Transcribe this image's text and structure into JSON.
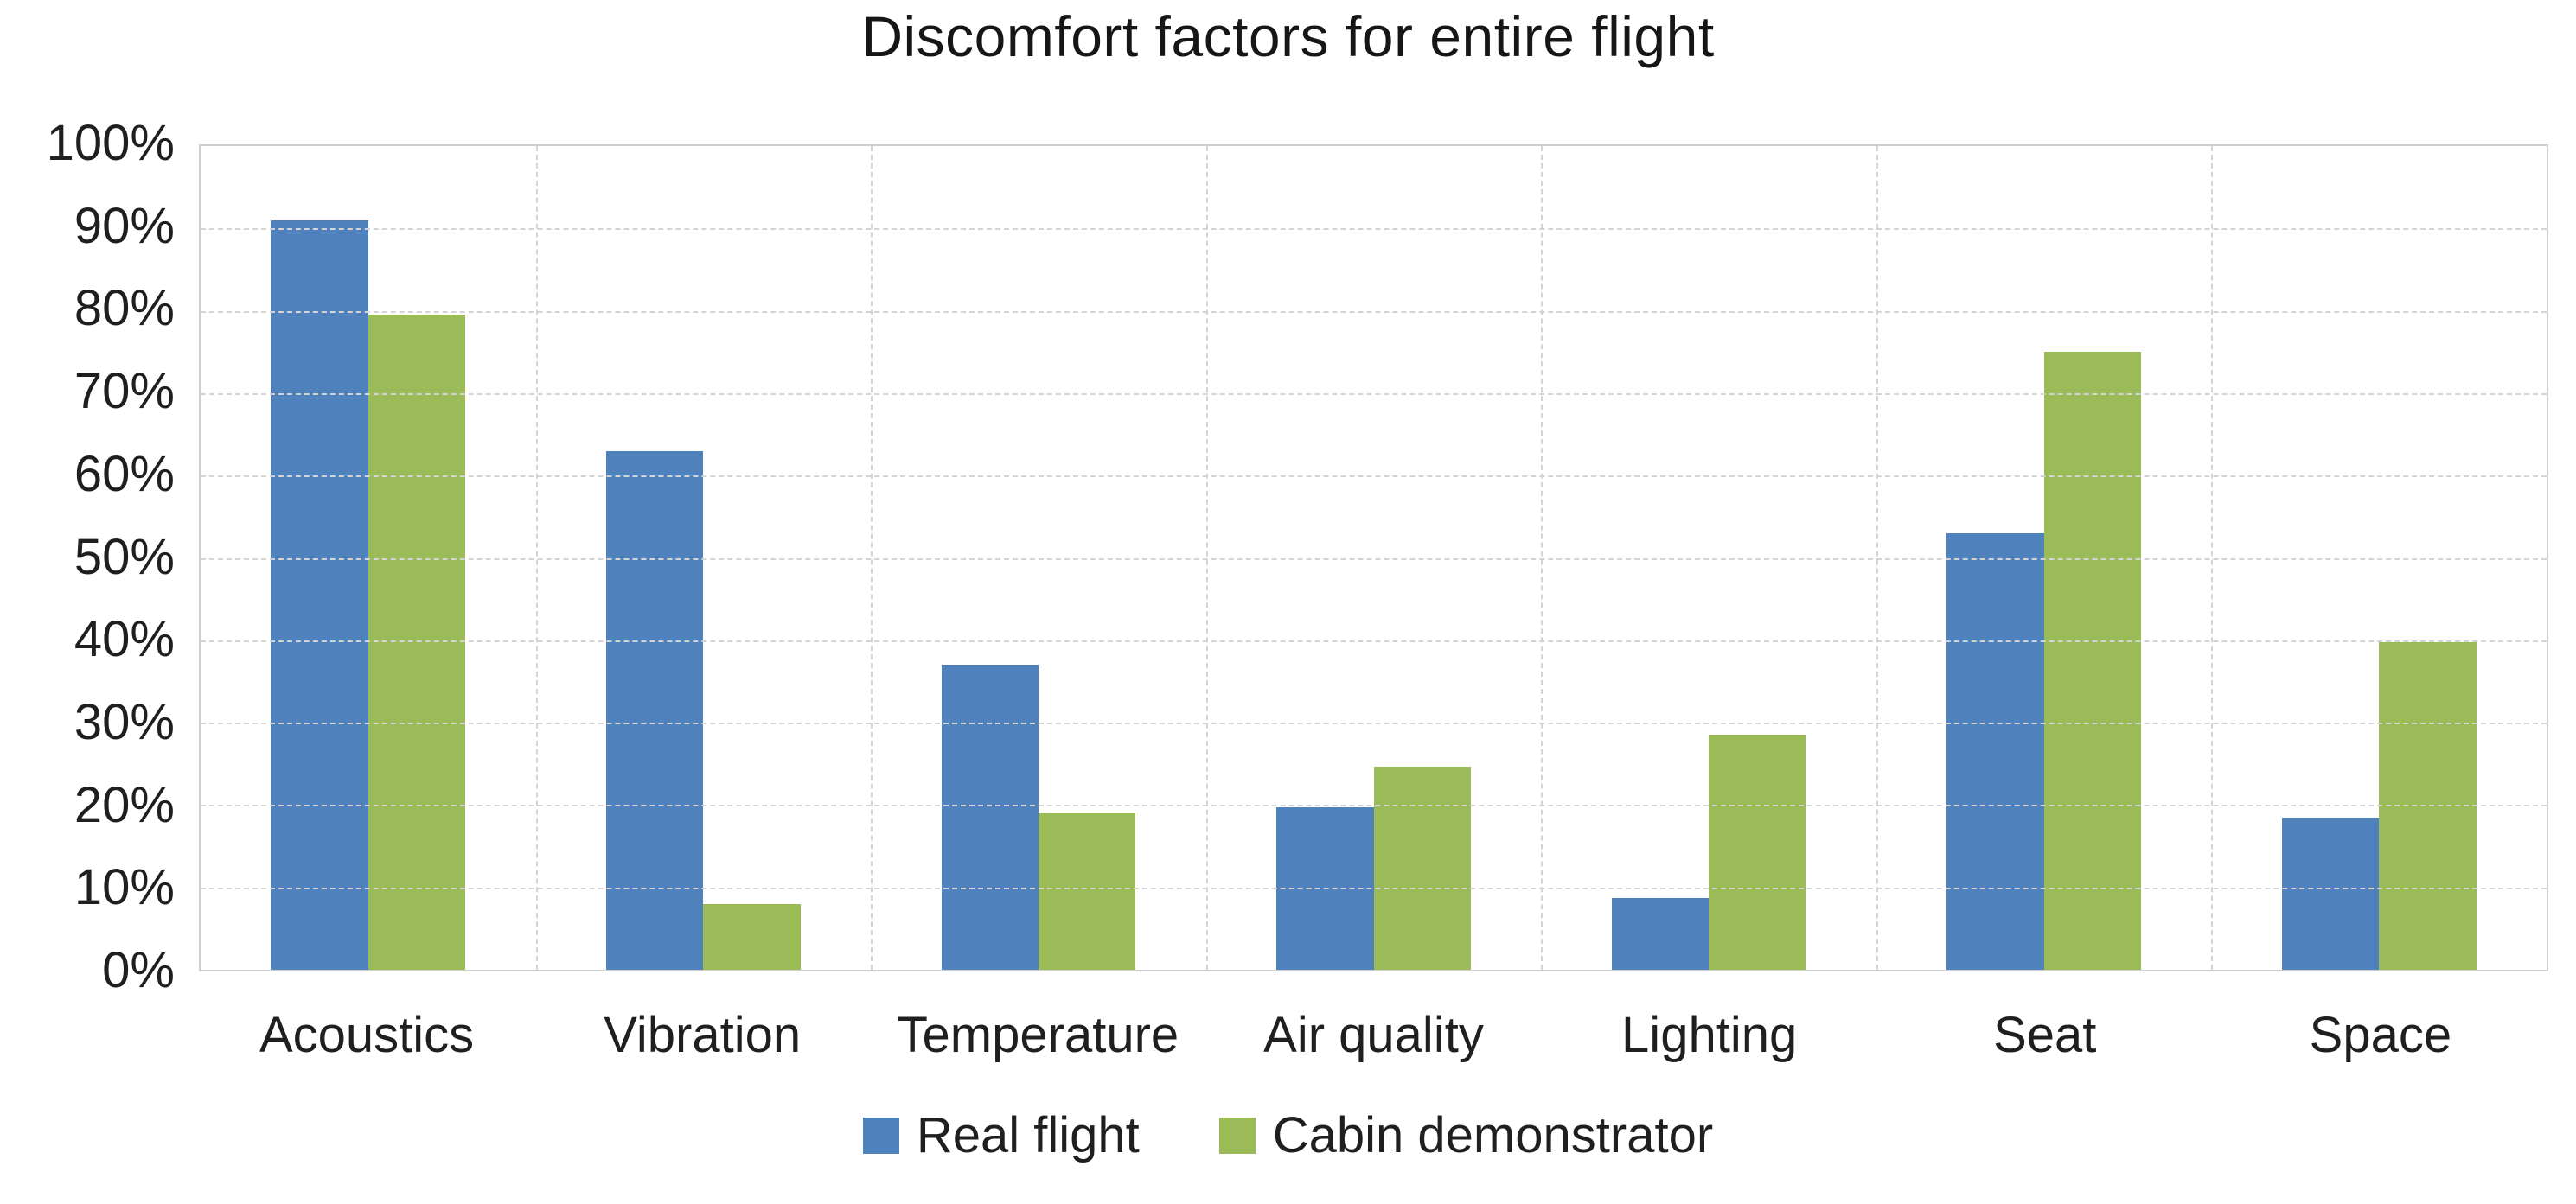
{
  "chart_data": {
    "type": "bar",
    "title": "Discomfort factors for entire flight",
    "categories": [
      "Acoustics",
      "Vibration",
      "Temperature",
      "Air quality",
      "Lighting",
      "Seat",
      "Space"
    ],
    "series": [
      {
        "name": "Real flight",
        "color": "#4F81BD",
        "values": [
          91,
          63,
          37,
          19.7,
          8.7,
          53,
          18.5
        ]
      },
      {
        "name": "Cabin demonstrator",
        "color": "#9BBB59",
        "values": [
          79.5,
          8,
          19,
          24.7,
          28.5,
          75,
          39.8
        ]
      }
    ],
    "xlabel": "",
    "ylabel": "",
    "ylim": [
      0,
      100
    ],
    "ytick_step": 10,
    "ytick_labels": [
      "0%",
      "10%",
      "20%",
      "30%",
      "40%",
      "50%",
      "60%",
      "70%",
      "80%",
      "90%",
      "100%"
    ],
    "grid": "horizontal dashed gridlines every 10% plus vertical category-boundary gridlines, light gray plot border",
    "legend_position": "bottom-center",
    "colors": {
      "grid": "#D4D4D4",
      "plot_border": "#CFCFCF",
      "text": "#1F1F1F",
      "background": "#FFFFFF"
    }
  }
}
